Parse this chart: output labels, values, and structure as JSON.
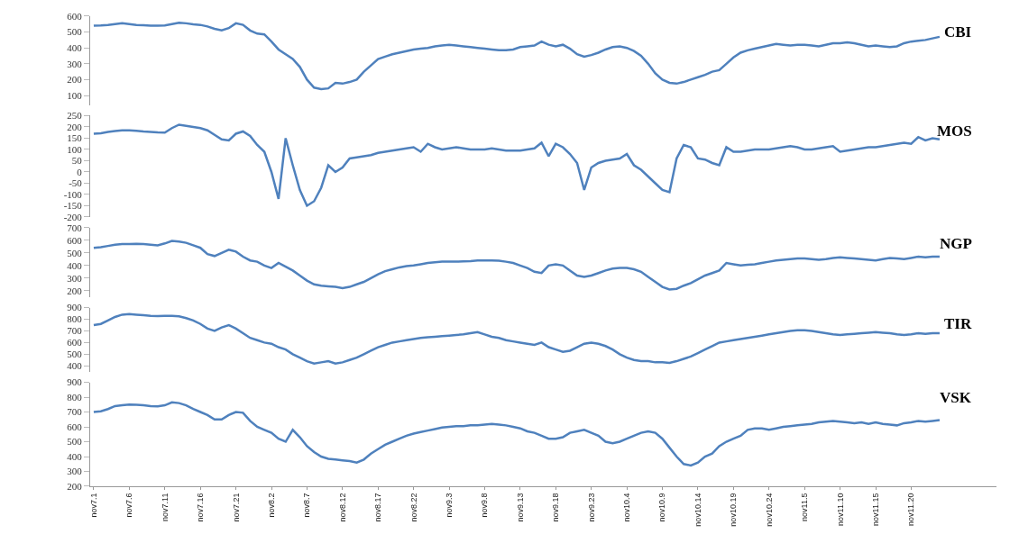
{
  "chart_data": [
    {
      "type": "line",
      "tick_labels": "y",
      "categories": [
        null,
        null,
        null,
        null,
        null,
        null,
        null,
        null,
        null,
        null,
        null,
        null,
        null,
        null,
        null,
        null,
        null,
        null,
        null,
        null,
        null,
        null,
        null,
        null,
        null,
        null,
        null,
        null,
        null,
        null,
        null,
        null,
        null,
        null,
        null,
        null,
        null,
        null,
        null,
        null,
        null,
        null,
        null,
        null,
        null,
        null,
        null,
        null,
        null,
        null,
        null,
        null,
        null,
        null,
        null,
        null,
        null,
        null,
        null,
        null,
        null,
        null,
        null,
        null,
        null,
        null,
        null,
        null,
        null,
        null,
        null,
        null,
        null,
        null,
        null,
        null,
        null,
        null,
        null,
        null,
        null,
        null,
        null,
        null,
        null,
        null,
        null,
        null,
        null,
        null,
        null,
        null,
        null,
        null,
        null,
        null,
        null,
        null,
        null,
        null,
        null,
        null,
        null,
        null,
        null,
        null,
        null,
        null,
        null,
        null,
        null,
        null,
        null,
        null,
        null,
        null,
        null,
        null,
        null,
        null
      ],
      "series": [
        {
          "name": "CBI",
          "color": "#4f81bd",
          "values": [
            540,
            542,
            545,
            550,
            555,
            550,
            545,
            543,
            540,
            540,
            542,
            550,
            558,
            555,
            548,
            545,
            535,
            520,
            510,
            525,
            555,
            545,
            510,
            490,
            485,
            440,
            390,
            360,
            330,
            280,
            200,
            150,
            140,
            145,
            180,
            175,
            185,
            200,
            250,
            290,
            330,
            345,
            360,
            370,
            380,
            390,
            395,
            400,
            410,
            415,
            420,
            415,
            410,
            405,
            400,
            395,
            390,
            385,
            385,
            390,
            405,
            410,
            415,
            440,
            420,
            410,
            420,
            395,
            360,
            345,
            355,
            370,
            390,
            405,
            410,
            400,
            380,
            350,
            300,
            240,
            200,
            180,
            175,
            185,
            200,
            215,
            230,
            250,
            260,
            300,
            340,
            370,
            385,
            395,
            405,
            415,
            425,
            420,
            415,
            420,
            420,
            415,
            410,
            420,
            430,
            430,
            435,
            430,
            420,
            410,
            415,
            410,
            405,
            410,
            430,
            440,
            445,
            450,
            460,
            470
          ]
        }
      ],
      "ylim": [
        40,
        600
      ],
      "yticks": [
        100,
        200,
        300,
        400,
        500,
        600
      ],
      "legend": false,
      "marker": "none",
      "line_style": "solid"
    },
    {
      "type": "line",
      "tick_labels": "y",
      "categories": [
        null,
        null,
        null,
        null,
        null,
        null,
        null,
        null,
        null,
        null,
        null,
        null,
        null,
        null,
        null,
        null,
        null,
        null,
        null,
        null,
        null,
        null,
        null,
        null,
        null,
        null,
        null,
        null,
        null,
        null,
        null,
        null,
        null,
        null,
        null,
        null,
        null,
        null,
        null,
        null,
        null,
        null,
        null,
        null,
        null,
        null,
        null,
        null,
        null,
        null,
        null,
        null,
        null,
        null,
        null,
        null,
        null,
        null,
        null,
        null,
        null,
        null,
        null,
        null,
        null,
        null,
        null,
        null,
        null,
        null,
        null,
        null,
        null,
        null,
        null,
        null,
        null,
        null,
        null,
        null,
        null,
        null,
        null,
        null,
        null,
        null,
        null,
        null,
        null,
        null,
        null,
        null,
        null,
        null,
        null,
        null,
        null,
        null,
        null,
        null,
        null,
        null,
        null,
        null,
        null,
        null,
        null,
        null,
        null,
        null,
        null,
        null,
        null,
        null,
        null,
        null,
        null,
        null,
        null,
        null
      ],
      "series": [
        {
          "name": "MOS",
          "color": "#4f81bd",
          "values": [
            170,
            172,
            178,
            182,
            185,
            185,
            183,
            180,
            178,
            176,
            175,
            195,
            210,
            205,
            200,
            195,
            185,
            165,
            145,
            140,
            170,
            180,
            160,
            120,
            90,
            0,
            -120,
            150,
            30,
            -80,
            -150,
            -130,
            -70,
            30,
            0,
            20,
            60,
            65,
            70,
            75,
            85,
            90,
            95,
            100,
            105,
            110,
            90,
            125,
            110,
            100,
            105,
            110,
            105,
            100,
            100,
            100,
            105,
            100,
            95,
            95,
            95,
            100,
            105,
            130,
            70,
            125,
            110,
            80,
            40,
            -80,
            20,
            40,
            50,
            55,
            60,
            80,
            30,
            10,
            -20,
            -50,
            -80,
            -90,
            60,
            120,
            110,
            60,
            55,
            40,
            30,
            110,
            90,
            90,
            95,
            100,
            100,
            100,
            105,
            110,
            115,
            110,
            100,
            100,
            105,
            110,
            115,
            90,
            95,
            100,
            105,
            110,
            110,
            115,
            120,
            125,
            130,
            125,
            155,
            140,
            150,
            145
          ]
        }
      ],
      "ylim": [
        -200,
        250
      ],
      "yticks": [
        -200,
        -150,
        -100,
        -50,
        0,
        50,
        100,
        150,
        200,
        250
      ],
      "legend": false,
      "marker": "none",
      "line_style": "solid"
    },
    {
      "type": "line",
      "tick_labels": "y",
      "categories": [
        null,
        null,
        null,
        null,
        null,
        null,
        null,
        null,
        null,
        null,
        null,
        null,
        null,
        null,
        null,
        null,
        null,
        null,
        null,
        null,
        null,
        null,
        null,
        null,
        null,
        null,
        null,
        null,
        null,
        null,
        null,
        null,
        null,
        null,
        null,
        null,
        null,
        null,
        null,
        null,
        null,
        null,
        null,
        null,
        null,
        null,
        null,
        null,
        null,
        null,
        null,
        null,
        null,
        null,
        null,
        null,
        null,
        null,
        null,
        null,
        null,
        null,
        null,
        null,
        null,
        null,
        null,
        null,
        null,
        null,
        null,
        null,
        null,
        null,
        null,
        null,
        null,
        null,
        null,
        null,
        null,
        null,
        null,
        null,
        null,
        null,
        null,
        null,
        null,
        null,
        null,
        null,
        null,
        null,
        null,
        null,
        null,
        null,
        null,
        null,
        null,
        null,
        null,
        null,
        null,
        null,
        null,
        null,
        null,
        null,
        null,
        null,
        null,
        null,
        null,
        null,
        null,
        null,
        null,
        null
      ],
      "series": [
        {
          "name": "NGP",
          "color": "#4f81bd",
          "values": [
            540,
            545,
            555,
            565,
            570,
            570,
            572,
            570,
            565,
            560,
            575,
            595,
            590,
            580,
            560,
            540,
            490,
            475,
            500,
            525,
            510,
            470,
            440,
            430,
            400,
            380,
            420,
            390,
            360,
            320,
            280,
            250,
            240,
            235,
            230,
            220,
            230,
            250,
            270,
            300,
            330,
            355,
            370,
            385,
            395,
            400,
            410,
            420,
            425,
            430,
            430,
            430,
            432,
            435,
            440,
            440,
            440,
            438,
            430,
            420,
            400,
            380,
            350,
            340,
            400,
            410,
            400,
            360,
            320,
            310,
            320,
            340,
            360,
            375,
            380,
            380,
            370,
            350,
            310,
            270,
            230,
            210,
            215,
            240,
            260,
            290,
            320,
            340,
            360,
            420,
            410,
            400,
            405,
            410,
            420,
            430,
            440,
            445,
            450,
            455,
            455,
            450,
            445,
            450,
            460,
            465,
            460,
            455,
            450,
            445,
            440,
            450,
            460,
            455,
            450,
            460,
            470,
            465,
            470,
            470
          ]
        }
      ],
      "ylim": [
        150,
        700
      ],
      "yticks": [
        200,
        300,
        400,
        500,
        600,
        700
      ],
      "legend": false,
      "marker": "none",
      "line_style": "solid"
    },
    {
      "type": "line",
      "tick_labels": "y",
      "categories": [
        null,
        null,
        null,
        null,
        null,
        null,
        null,
        null,
        null,
        null,
        null,
        null,
        null,
        null,
        null,
        null,
        null,
        null,
        null,
        null,
        null,
        null,
        null,
        null,
        null,
        null,
        null,
        null,
        null,
        null,
        null,
        null,
        null,
        null,
        null,
        null,
        null,
        null,
        null,
        null,
        null,
        null,
        null,
        null,
        null,
        null,
        null,
        null,
        null,
        null,
        null,
        null,
        null,
        null,
        null,
        null,
        null,
        null,
        null,
        null,
        null,
        null,
        null,
        null,
        null,
        null,
        null,
        null,
        null,
        null,
        null,
        null,
        null,
        null,
        null,
        null,
        null,
        null,
        null,
        null,
        null,
        null,
        null,
        null,
        null,
        null,
        null,
        null,
        null,
        null,
        null,
        null,
        null,
        null,
        null,
        null,
        null,
        null,
        null,
        null,
        null,
        null,
        null,
        null,
        null,
        null,
        null,
        null,
        null,
        null,
        null,
        null,
        null,
        null,
        null,
        null,
        null,
        null,
        null,
        null
      ],
      "series": [
        {
          "name": "TIR",
          "color": "#4f81bd",
          "values": [
            750,
            760,
            790,
            820,
            840,
            845,
            840,
            835,
            830,
            828,
            830,
            830,
            825,
            810,
            790,
            760,
            720,
            700,
            730,
            750,
            720,
            680,
            640,
            620,
            600,
            590,
            560,
            540,
            500,
            470,
            440,
            420,
            430,
            440,
            420,
            430,
            450,
            470,
            500,
            530,
            560,
            580,
            600,
            610,
            620,
            630,
            640,
            645,
            650,
            655,
            660,
            665,
            670,
            680,
            690,
            670,
            650,
            640,
            620,
            610,
            600,
            590,
            580,
            600,
            560,
            540,
            520,
            530,
            560,
            590,
            600,
            590,
            570,
            540,
            500,
            470,
            450,
            440,
            440,
            430,
            430,
            425,
            440,
            460,
            480,
            510,
            540,
            570,
            600,
            610,
            620,
            630,
            640,
            650,
            660,
            670,
            680,
            690,
            700,
            705,
            705,
            700,
            690,
            680,
            670,
            665,
            670,
            675,
            680,
            685,
            690,
            685,
            680,
            670,
            665,
            670,
            680,
            675,
            680,
            680
          ]
        }
      ],
      "ylim": [
        350,
        900
      ],
      "yticks": [
        400,
        500,
        600,
        700,
        800,
        900
      ],
      "legend": false,
      "marker": "none",
      "line_style": "solid"
    },
    {
      "type": "line",
      "categories": [
        "nov7.1",
        null,
        null,
        null,
        null,
        "nov7.6",
        null,
        null,
        null,
        null,
        "nov7.11",
        null,
        null,
        null,
        null,
        "nov7.16",
        null,
        null,
        null,
        null,
        "nov7.21",
        null,
        null,
        null,
        null,
        "nov8.2",
        null,
        null,
        null,
        null,
        "nov8.7",
        null,
        null,
        null,
        null,
        "nov8.12",
        null,
        null,
        null,
        null,
        "nov8.17",
        null,
        null,
        null,
        null,
        "nov8.22",
        null,
        null,
        null,
        null,
        "nov9.3",
        null,
        null,
        null,
        null,
        "nov9.8",
        null,
        null,
        null,
        null,
        "nov9.13",
        null,
        null,
        null,
        null,
        "nov9.18",
        null,
        null,
        null,
        null,
        "nov9.23",
        null,
        null,
        null,
        null,
        "nov10.4",
        null,
        null,
        null,
        null,
        "nov10.9",
        null,
        null,
        null,
        null,
        "nov10.14",
        null,
        null,
        null,
        null,
        "nov10.19",
        null,
        null,
        null,
        null,
        "nov10.24",
        null,
        null,
        null,
        null,
        "nov11.5",
        null,
        null,
        null,
        null,
        "nov11.10",
        null,
        null,
        null,
        null,
        "nov11.15",
        null,
        null,
        null,
        null,
        "nov11.20",
        null,
        null,
        null,
        null
      ],
      "series": [
        {
          "name": "VSK",
          "color": "#4f81bd",
          "values": [
            700,
            705,
            720,
            740,
            745,
            750,
            748,
            745,
            740,
            738,
            745,
            765,
            760,
            745,
            720,
            700,
            680,
            650,
            650,
            680,
            700,
            695,
            640,
            600,
            580,
            560,
            520,
            500,
            580,
            530,
            470,
            430,
            400,
            385,
            380,
            375,
            370,
            360,
            380,
            420,
            450,
            480,
            500,
            520,
            540,
            555,
            565,
            575,
            585,
            595,
            600,
            605,
            605,
            610,
            610,
            615,
            620,
            615,
            610,
            600,
            590,
            570,
            560,
            540,
            520,
            520,
            530,
            560,
            570,
            580,
            560,
            540,
            500,
            490,
            500,
            520,
            540,
            560,
            570,
            560,
            520,
            460,
            400,
            350,
            340,
            360,
            400,
            420,
            470,
            500,
            520,
            540,
            580,
            590,
            590,
            580,
            590,
            600,
            605,
            610,
            615,
            620,
            630,
            635,
            640,
            635,
            630,
            625,
            630,
            620,
            630,
            620,
            615,
            610,
            625,
            630,
            640,
            635,
            640,
            645
          ]
        }
      ],
      "ylim": [
        200,
        900
      ],
      "yticks": [
        200,
        300,
        400,
        500,
        600,
        700,
        800,
        900
      ],
      "legend": false,
      "marker": "none",
      "line_style": "solid"
    }
  ]
}
